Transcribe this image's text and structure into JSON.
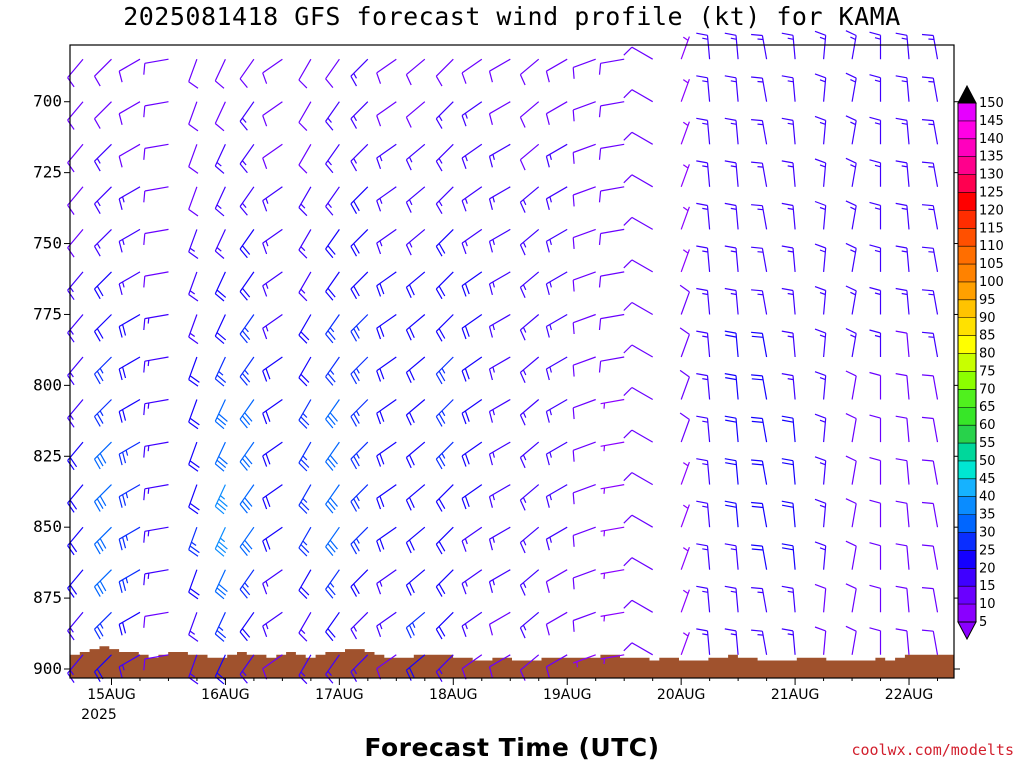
{
  "chart_data": {
    "type": "wind_barb_time_height",
    "title": "2025081418 GFS forecast wind profile (kt) for KAMA",
    "xlabel": "Forecast Time (UTC)",
    "ylabel": "",
    "credit": "coolwx.com/modelts",
    "x_ticks": [
      "15AUG",
      "16AUG",
      "17AUG",
      "18AUG",
      "19AUG",
      "20AUG",
      "21AUG",
      "22AUG"
    ],
    "x_year_label": "2025",
    "xlim_hours": [
      0,
      182
    ],
    "y_ticks": [
      "700",
      "725",
      "750",
      "775",
      "800",
      "825",
      "850",
      "875",
      "900"
    ],
    "ylim_hPa": [
      680,
      900
    ],
    "colorbar": {
      "levels": [
        5,
        10,
        15,
        20,
        25,
        30,
        35,
        40,
        45,
        50,
        55,
        60,
        65,
        70,
        75,
        80,
        85,
        90,
        95,
        100,
        105,
        110,
        115,
        120,
        125,
        130,
        135,
        140,
        145,
        150
      ],
      "colors": [
        "#8a00ff",
        "#6a00ff",
        "#3f00ff",
        "#1400ff",
        "#0a2eff",
        "#0066ff",
        "#0a8cff",
        "#16b2ff",
        "#00e6d2",
        "#00d79b",
        "#28d24b",
        "#37e628",
        "#50f01e",
        "#8cff00",
        "#c8ff00",
        "#ffff00",
        "#ffe100",
        "#ffc300",
        "#ffa000",
        "#ff8200",
        "#ff6e00",
        "#ff5000",
        "#ff2d00",
        "#ff0000",
        "#ff0050",
        "#ff008c",
        "#ff00be",
        "#ff00e6",
        "#e600ff",
        "#ffffff"
      ]
    },
    "pressure_levels_hPa": [
      685,
      700,
      715,
      730,
      745,
      760,
      775,
      790,
      805,
      820,
      835,
      850,
      865,
      880,
      895
    ],
    "wind_series": [
      {
        "hour": 0,
        "dir_deg": 220,
        "speed_kt": [
          10,
          10,
          10,
          10,
          10,
          15,
          15,
          15,
          15,
          20,
          20,
          20,
          20,
          15,
          15
        ]
      },
      {
        "hour": 6,
        "dir_deg": 225,
        "speed_kt": [
          10,
          10,
          15,
          15,
          15,
          20,
          20,
          25,
          25,
          30,
          30,
          30,
          30,
          25,
          20
        ]
      },
      {
        "hour": 12,
        "dir_deg": 240,
        "speed_kt": [
          10,
          10,
          10,
          15,
          15,
          15,
          20,
          20,
          20,
          25,
          25,
          25,
          25,
          20,
          15
        ]
      },
      {
        "hour": 18,
        "dir_deg": 260,
        "speed_kt": [
          10,
          10,
          10,
          10,
          10,
          10,
          15,
          15,
          15,
          15,
          15,
          15,
          15,
          10,
          10
        ]
      },
      {
        "hour": 24,
        "dir_deg": 200,
        "speed_kt": [
          10,
          10,
          10,
          10,
          15,
          15,
          15,
          20,
          20,
          20,
          20,
          25,
          20,
          15,
          15
        ]
      },
      {
        "hour": 30,
        "dir_deg": 205,
        "speed_kt": [
          10,
          10,
          15,
          15,
          15,
          20,
          20,
          25,
          30,
          30,
          35,
          35,
          30,
          25,
          20
        ]
      },
      {
        "hour": 36,
        "dir_deg": 215,
        "speed_kt": [
          10,
          15,
          15,
          15,
          20,
          20,
          25,
          25,
          30,
          30,
          30,
          30,
          25,
          20,
          15
        ]
      },
      {
        "hour": 42,
        "dir_deg": 235,
        "speed_kt": [
          10,
          10,
          10,
          15,
          15,
          15,
          15,
          20,
          20,
          20,
          20,
          20,
          15,
          15,
          10
        ]
      },
      {
        "hour": 48,
        "dir_deg": 210,
        "speed_kt": [
          10,
          10,
          10,
          15,
          15,
          15,
          20,
          20,
          25,
          25,
          25,
          25,
          20,
          15,
          15
        ]
      },
      {
        "hour": 54,
        "dir_deg": 215,
        "speed_kt": [
          10,
          15,
          15,
          15,
          20,
          20,
          25,
          25,
          30,
          30,
          30,
          30,
          25,
          20,
          15
        ]
      },
      {
        "hour": 60,
        "dir_deg": 225,
        "speed_kt": [
          15,
          15,
          15,
          20,
          20,
          20,
          25,
          25,
          25,
          25,
          25,
          25,
          20,
          15,
          15
        ]
      },
      {
        "hour": 66,
        "dir_deg": 235,
        "speed_kt": [
          10,
          10,
          15,
          15,
          15,
          20,
          20,
          20,
          20,
          20,
          20,
          20,
          15,
          15,
          10
        ]
      },
      {
        "hour": 72,
        "dir_deg": 230,
        "speed_kt": [
          10,
          10,
          15,
          15,
          15,
          20,
          20,
          20,
          20,
          20,
          20,
          20,
          20,
          25,
          20
        ]
      },
      {
        "hour": 78,
        "dir_deg": 225,
        "speed_kt": [
          10,
          15,
          15,
          15,
          20,
          20,
          20,
          25,
          25,
          25,
          20,
          20,
          20,
          20,
          15
        ]
      },
      {
        "hour": 84,
        "dir_deg": 235,
        "speed_kt": [
          10,
          15,
          15,
          15,
          15,
          20,
          20,
          20,
          20,
          20,
          20,
          15,
          15,
          15,
          10
        ]
      },
      {
        "hour": 90,
        "dir_deg": 240,
        "speed_kt": [
          10,
          10,
          15,
          15,
          15,
          15,
          15,
          15,
          15,
          15,
          15,
          15,
          15,
          10,
          10
        ]
      },
      {
        "hour": 96,
        "dir_deg": 230,
        "speed_kt": [
          10,
          10,
          10,
          15,
          15,
          15,
          15,
          15,
          15,
          15,
          15,
          15,
          15,
          15,
          10
        ]
      },
      {
        "hour": 102,
        "dir_deg": 240,
        "speed_kt": [
          10,
          10,
          15,
          15,
          15,
          15,
          15,
          15,
          15,
          15,
          15,
          15,
          10,
          10,
          10
        ]
      },
      {
        "hour": 108,
        "dir_deg": 250,
        "speed_kt": [
          10,
          10,
          10,
          10,
          10,
          10,
          10,
          10,
          10,
          10,
          10,
          10,
          10,
          10,
          5
        ]
      },
      {
        "hour": 114,
        "dir_deg": 260,
        "speed_kt": [
          10,
          10,
          10,
          10,
          10,
          10,
          10,
          10,
          5,
          5,
          5,
          5,
          5,
          5,
          5
        ]
      },
      {
        "hour": 120,
        "dir_deg": 300,
        "speed_kt": [
          10,
          10,
          10,
          10,
          10,
          10,
          10,
          10,
          10,
          10,
          10,
          10,
          10,
          10,
          10
        ]
      },
      {
        "hour": 126,
        "dir_deg": 20,
        "speed_kt": [
          5,
          5,
          5,
          5,
          5,
          5,
          10,
          10,
          10,
          10,
          5,
          5,
          5,
          5,
          5
        ]
      },
      {
        "hour": 132,
        "dir_deg": 355,
        "speed_kt": [
          15,
          15,
          15,
          15,
          15,
          15,
          15,
          15,
          15,
          15,
          15,
          15,
          15,
          15,
          15
        ]
      },
      {
        "hour": 138,
        "dir_deg": 355,
        "speed_kt": [
          15,
          15,
          15,
          15,
          15,
          15,
          15,
          20,
          20,
          20,
          20,
          20,
          15,
          15,
          15
        ]
      },
      {
        "hour": 144,
        "dir_deg": 350,
        "speed_kt": [
          15,
          15,
          15,
          15,
          15,
          15,
          15,
          20,
          20,
          20,
          20,
          20,
          20,
          15,
          15
        ]
      },
      {
        "hour": 150,
        "dir_deg": 355,
        "speed_kt": [
          15,
          15,
          15,
          15,
          15,
          15,
          15,
          15,
          15,
          20,
          20,
          20,
          20,
          15,
          15
        ]
      },
      {
        "hour": 156,
        "dir_deg": 5,
        "speed_kt": [
          15,
          15,
          15,
          15,
          15,
          15,
          15,
          15,
          15,
          15,
          15,
          15,
          15,
          10,
          10
        ]
      },
      {
        "hour": 162,
        "dir_deg": 10,
        "speed_kt": [
          15,
          15,
          15,
          15,
          15,
          15,
          15,
          15,
          10,
          10,
          10,
          10,
          10,
          10,
          10
        ]
      },
      {
        "hour": 168,
        "dir_deg": 0,
        "speed_kt": [
          15,
          15,
          15,
          15,
          15,
          15,
          15,
          15,
          10,
          10,
          10,
          10,
          10,
          10,
          10
        ]
      },
      {
        "hour": 174,
        "dir_deg": 355,
        "speed_kt": [
          15,
          15,
          15,
          15,
          15,
          15,
          15,
          10,
          10,
          10,
          10,
          10,
          10,
          10,
          10
        ]
      },
      {
        "hour": 180,
        "dir_deg": 350,
        "speed_kt": [
          15,
          15,
          15,
          15,
          15,
          15,
          15,
          15,
          10,
          10,
          10,
          10,
          10,
          10,
          10
        ]
      }
    ],
    "terrain_pressure_hPa": [
      895,
      894,
      893,
      892,
      893,
      894,
      894,
      895,
      896,
      895,
      894,
      894,
      895,
      895,
      896,
      896,
      895,
      894,
      895,
      895,
      896,
      895,
      894,
      895,
      896,
      895,
      894,
      894,
      893,
      893,
      894,
      895,
      896,
      896,
      896,
      895,
      895,
      895,
      895,
      896,
      896,
      897,
      897,
      896,
      896,
      897,
      897,
      897,
      896,
      896,
      896,
      896,
      896,
      896,
      895,
      895,
      896,
      896,
      896,
      897,
      896,
      896,
      897,
      897,
      897,
      896,
      896,
      895,
      896,
      896,
      897,
      897,
      897,
      897,
      896,
      896,
      896,
      897,
      897,
      897,
      897,
      897,
      896,
      897,
      896,
      895,
      895,
      895,
      895,
      895
    ]
  }
}
